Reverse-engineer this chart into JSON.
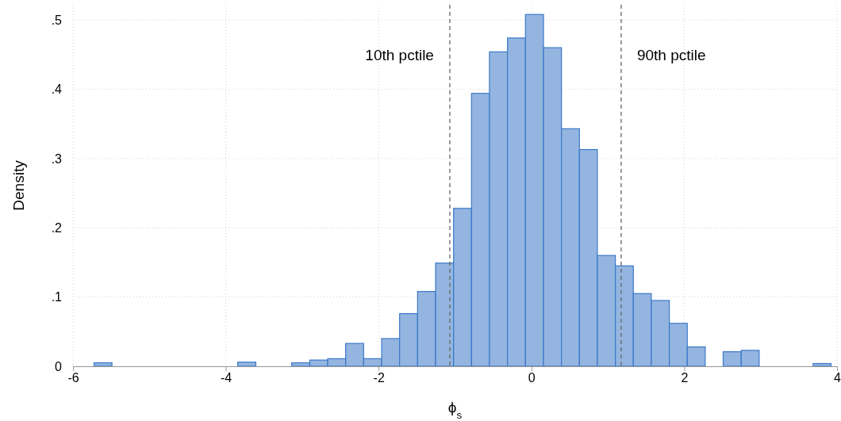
{
  "chart_data": {
    "type": "histogram",
    "xlabel": "ϕ$_{s}$",
    "ylabel": "Density",
    "bins": [
      -5.725,
      -5.49,
      -5.254,
      -5.019,
      -4.784,
      -4.549,
      -4.313,
      -4.078,
      -3.843,
      -3.607,
      -3.372,
      -3.137,
      -2.901,
      -2.666,
      -2.431,
      -2.196,
      -1.96,
      -1.725,
      -1.49,
      -1.254,
      -1.019,
      -0.784,
      -0.549,
      -0.313,
      -0.078,
      0.158,
      0.393,
      0.628,
      0.863,
      1.099,
      1.334,
      1.569,
      1.805,
      2.04,
      2.275,
      2.51,
      2.746,
      2.981,
      3.216,
      3.452,
      3.687,
      3.922
    ],
    "values": [
      0.005,
      0,
      0,
      0,
      0,
      0,
      0,
      0,
      0.006,
      0,
      0,
      0.005,
      0.009,
      0.011,
      0.033,
      0.011,
      0.04,
      0.076,
      0.108,
      0.149,
      0.228,
      0.394,
      0.454,
      0.474,
      0.508,
      0.46,
      0.343,
      0.313,
      0.16,
      0.145,
      0.105,
      0.095,
      0.062,
      0.028,
      0,
      0.021,
      0.023,
      0,
      0,
      0,
      0.004
    ],
    "color": "#94b5e0",
    "xlim": [
      -6,
      4
    ],
    "xticks": [
      -6,
      -4,
      -2,
      0,
      2,
      4
    ],
    "ylim": [
      0,
      0.522
    ],
    "yticks": [
      {
        "value": 0,
        "label": "0"
      },
      {
        "value": 0.1,
        "label": ".1"
      },
      {
        "value": 0.2,
        "label": ".2"
      },
      {
        "value": 0.3,
        "label": ".3"
      },
      {
        "value": 0.4,
        "label": ".4"
      },
      {
        "value": 0.5,
        "label": ".5"
      }
    ],
    "grid": true,
    "ref_lines": [
      {
        "axis": "x",
        "value": -1.068,
        "label": "10th pctile",
        "color": "#666666",
        "line_style": "dashed"
      },
      {
        "axis": "x",
        "value": 1.175,
        "label": "90th pctile",
        "color": "#666666",
        "line_style": "dashed"
      }
    ]
  }
}
